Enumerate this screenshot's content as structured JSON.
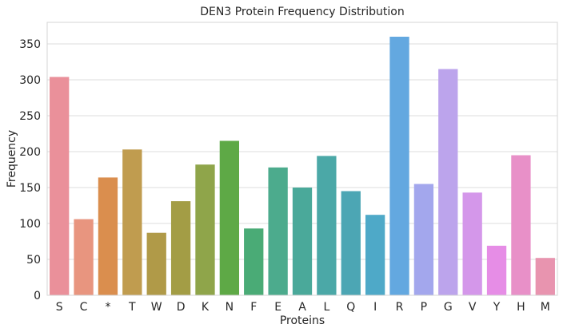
{
  "chart_data": {
    "type": "bar",
    "title": "DEN3 Protein Frequency Distribution",
    "xlabel": "Proteins",
    "ylabel": "Frequency",
    "ylim": [
      0,
      380
    ],
    "yticks": [
      0,
      50,
      100,
      150,
      200,
      250,
      300,
      350
    ],
    "ytick_labels": [
      "0",
      "50",
      "100",
      "150",
      "200",
      "250",
      "300",
      "350"
    ],
    "grid": true,
    "categories": [
      "S",
      "C",
      "*",
      "T",
      "W",
      "D",
      "K",
      "N",
      "F",
      "E",
      "A",
      "L",
      "Q",
      "I",
      "R",
      "P",
      "G",
      "V",
      "Y",
      "H",
      "M"
    ],
    "values": [
      304,
      106,
      164,
      203,
      87,
      131,
      182,
      215,
      93,
      178,
      150,
      194,
      145,
      112,
      360,
      155,
      315,
      143,
      69,
      195,
      52
    ],
    "colors": [
      "#ea909a",
      "#e8957f",
      "#da8e4e",
      "#c09c4f",
      "#b09a48",
      "#a39d45",
      "#8fa54a",
      "#5ea946",
      "#4aab76",
      "#4cab8d",
      "#4aa99a",
      "#4ba8a7",
      "#4ca6b4",
      "#4ea9c8",
      "#63a8e0",
      "#a3a7ed",
      "#bca4ec",
      "#d497ea",
      "#e68de6",
      "#e890c8",
      "#e894af"
    ]
  }
}
